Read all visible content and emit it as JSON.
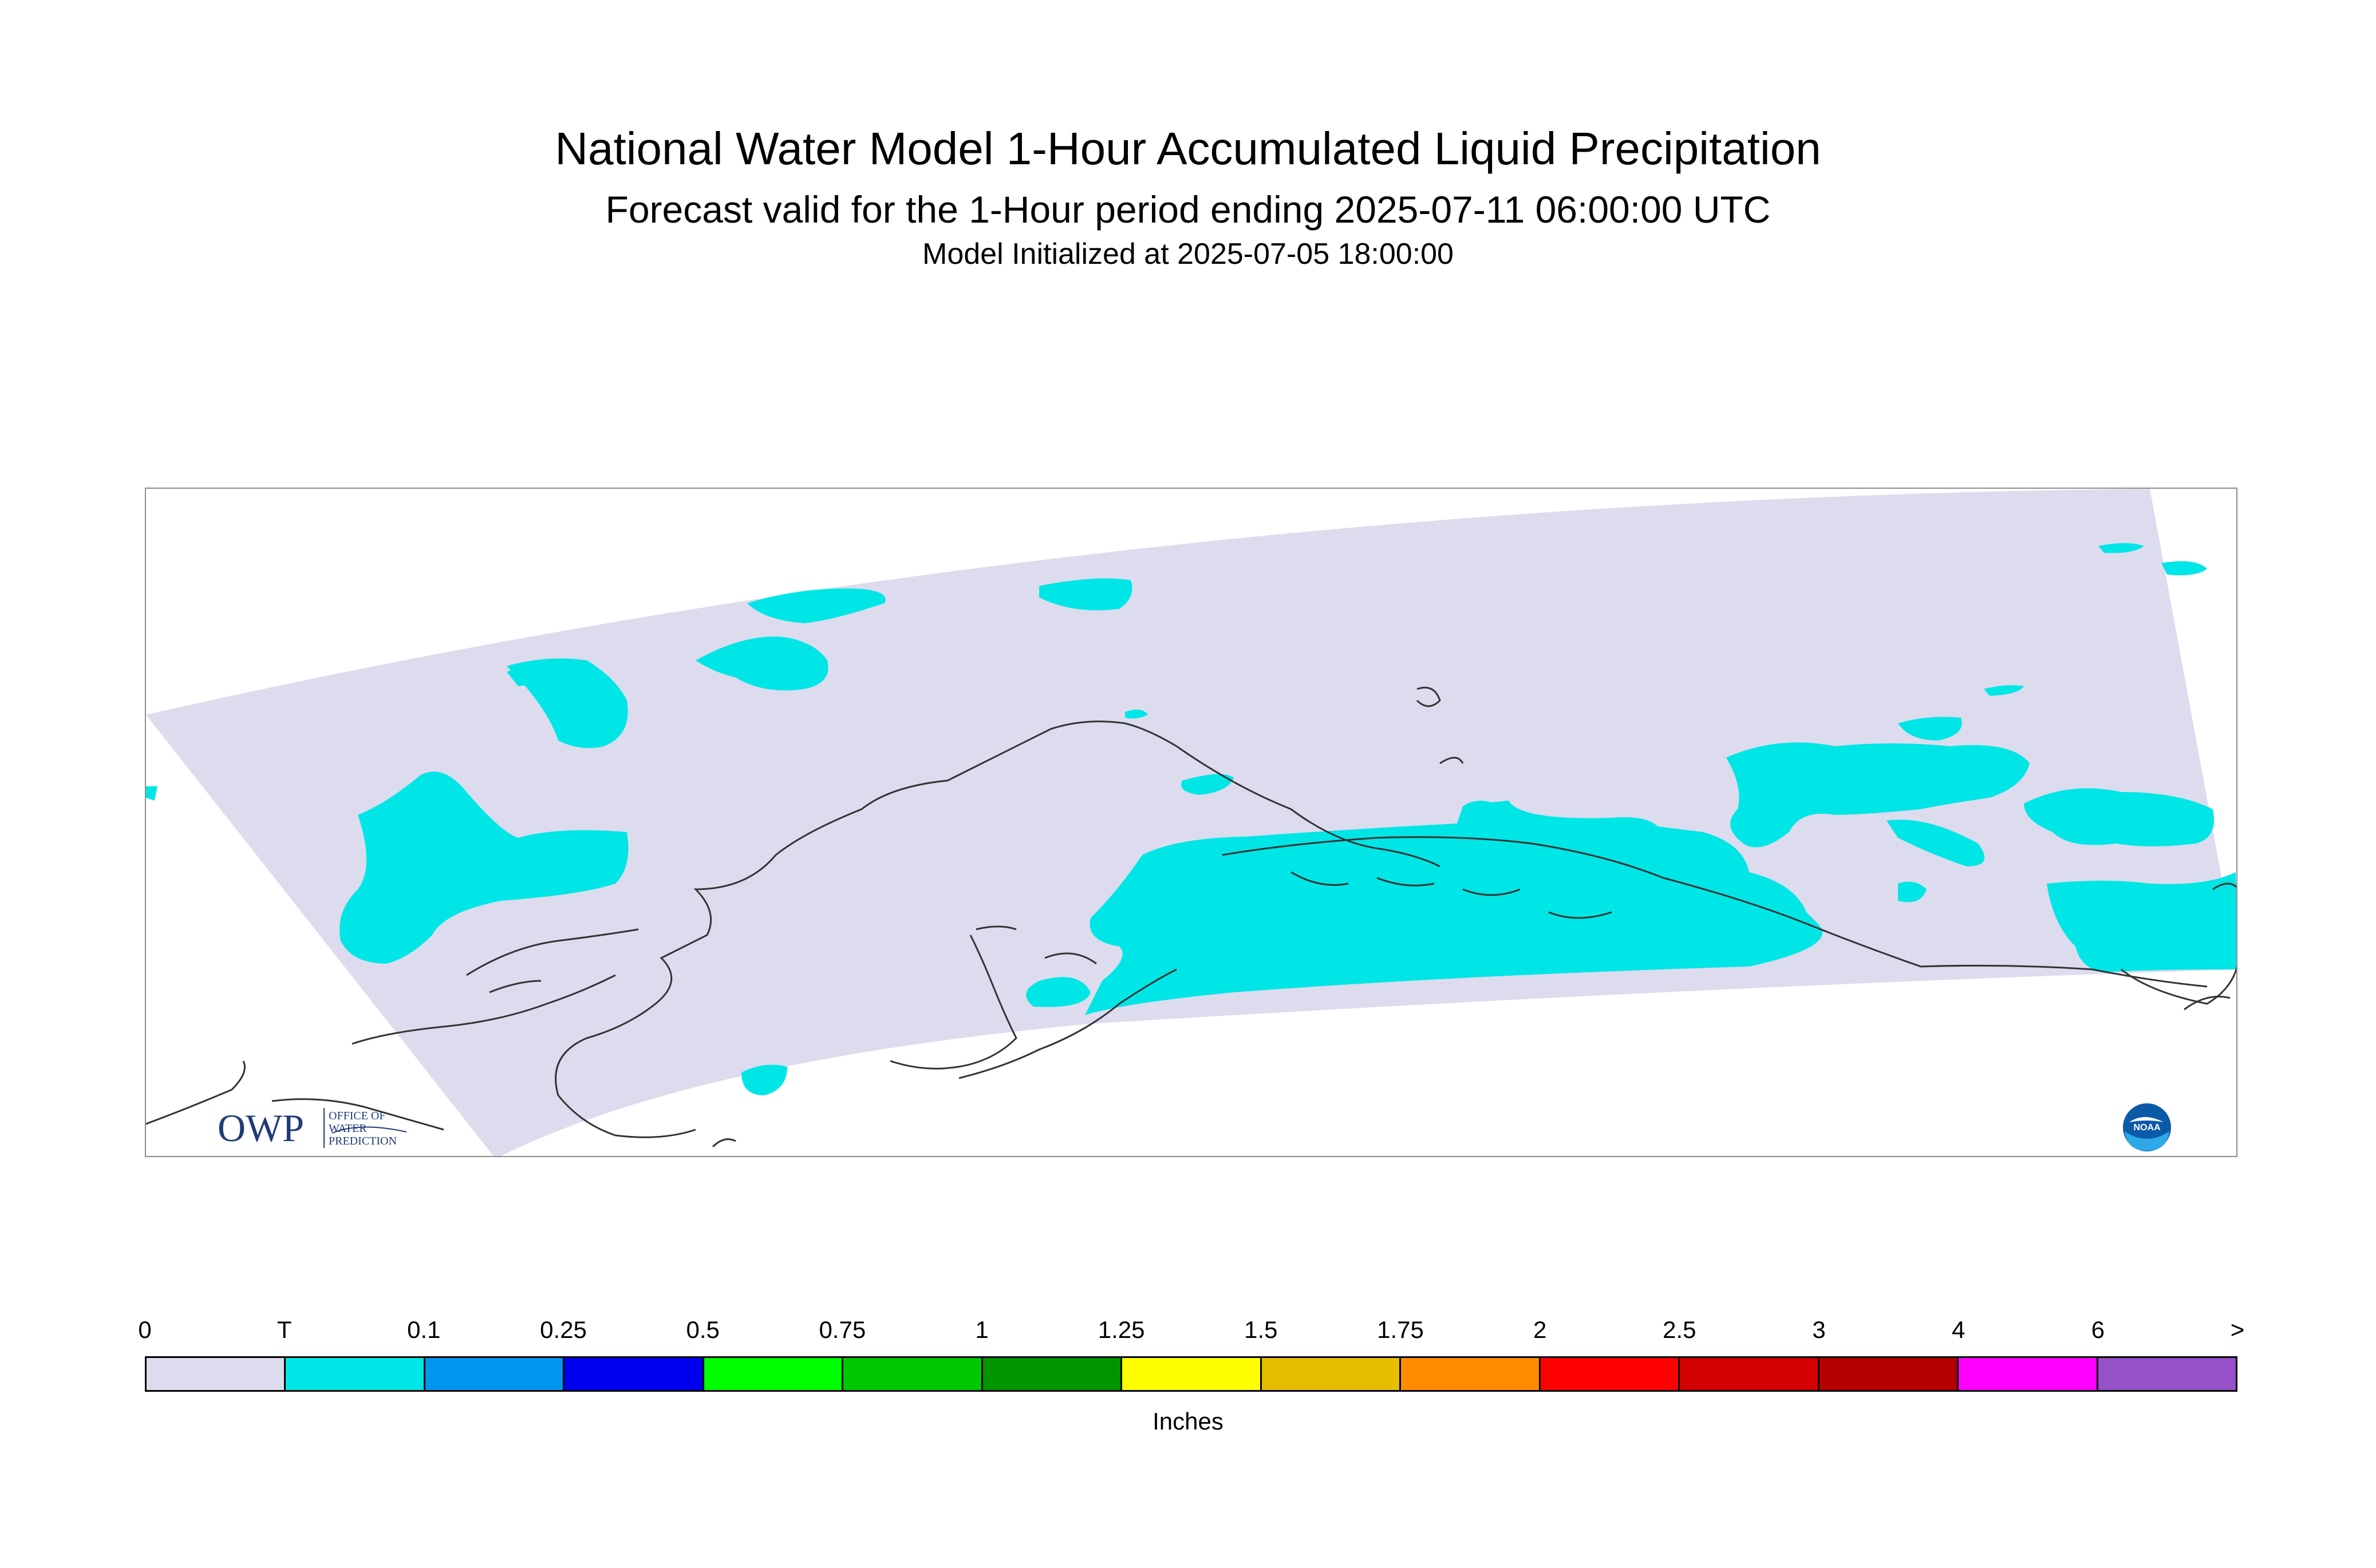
{
  "title": "National Water Model 1-Hour Accumulated Liquid Precipitation",
  "subtitle": "Forecast valid for the 1-Hour period ending 2025-07-11 06:00:00 UTC",
  "init_time": "Model Initialized at 2025-07-05 18:00:00",
  "logos": {
    "owp_text": "OWP",
    "owp_lines": [
      "OFFICE OF",
      "WATER",
      "PREDICTION"
    ],
    "noaa_text": "NOAA"
  },
  "colors": {
    "domain_background": "#dcdcee",
    "precip_trace": "#00e6e6",
    "coastline": "#333333"
  },
  "legend": {
    "units_label": "Inches",
    "tick_labels": [
      "0",
      "T",
      "0.1",
      "0.25",
      "0.5",
      "0.75",
      "1",
      "1.25",
      "1.5",
      "1.75",
      "2",
      "2.5",
      "3",
      "4",
      "6",
      ">"
    ],
    "bins": [
      {
        "color": "#dcdcee"
      },
      {
        "color": "#00e6e6"
      },
      {
        "color": "#0096f0"
      },
      {
        "color": "#0000f0"
      },
      {
        "color": "#00ff00"
      },
      {
        "color": "#00c800"
      },
      {
        "color": "#009600"
      },
      {
        "color": "#ffff00"
      },
      {
        "color": "#e6be00"
      },
      {
        "color": "#ff8c00"
      },
      {
        "color": "#ff0000"
      },
      {
        "color": "#d20000"
      },
      {
        "color": "#b40000"
      },
      {
        "color": "#ff00ff"
      },
      {
        "color": "#9650c8"
      }
    ]
  }
}
